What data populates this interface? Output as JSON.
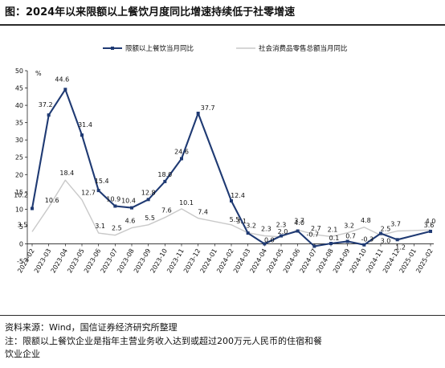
{
  "title": "图：2024年以来限额以上餐饮月度同比增速持续低于社零增速",
  "footer": {
    "source": "资料来源：Wind，国信证券经济研究所整理",
    "note_line1": "注：限额以上餐饮企业是指年主营业务收入达到或超过200万元人民币的住宿和餐",
    "note_line2": "饮业企业"
  },
  "chart_data": {
    "type": "line",
    "ylabel": "%",
    "ylim": [
      -5,
      50
    ],
    "yticks": [
      -5,
      0,
      5,
      10,
      15,
      20,
      25,
      30,
      35,
      40,
      45,
      50
    ],
    "grid": false,
    "legend": "top",
    "categories": [
      "2023-02",
      "2023-03",
      "2023-04",
      "2023-05",
      "2023-06",
      "2023-07",
      "2023-08",
      "2023-09",
      "2023-10",
      "2023-11",
      "2023-12",
      "2024-01",
      "2024-02",
      "2024-03",
      "2024-04",
      "2024-05",
      "2024-06",
      "2024-07",
      "2024-08",
      "2024-09",
      "2024-10",
      "2024-11",
      "2024-12",
      "2025-01",
      "2025-02"
    ],
    "x": [
      "2023-02",
      "2023-03",
      "2023-04",
      "2023-05",
      "2023-06",
      "2023-07",
      "2023-08",
      "2023-09",
      "2023-10",
      "2023-11",
      "2023-12",
      "2024-02",
      "2024-03",
      "2024-04",
      "2024-05",
      "2024-06",
      "2024-07",
      "2024-08",
      "2024-09",
      "2024-10",
      "2024-11",
      "2024-12",
      "2025-02"
    ],
    "series": [
      {
        "name": "限额以上餐饮当月同比",
        "color": "#1f3a73",
        "values": [
          10.2,
          37.2,
          44.6,
          31.4,
          15.4,
          10.9,
          10.4,
          12.8,
          18.0,
          24.6,
          37.7,
          12.4,
          3.1,
          0.0,
          2.3,
          3.7,
          -0.7,
          0.1,
          0.7,
          -0.3,
          3.0,
          1.2,
          3.6
        ],
        "labels": [
          "10.2",
          "37.2",
          "44.6",
          "31.4",
          "15.4",
          "10.9",
          "10.4",
          "12.8",
          "18.0",
          "24.6",
          "37.7",
          "12.4",
          "3.1",
          "0.0",
          "2.3",
          "3.7",
          "-0.7",
          "0.1",
          "0.7",
          "-0.3",
          "3.0",
          "1.2",
          "3.6"
        ]
      },
      {
        "name": "社会消费品零售总额当月同比",
        "color": "#c9c9c9",
        "values": [
          3.5,
          10.6,
          18.4,
          12.7,
          3.1,
          2.5,
          4.6,
          5.5,
          7.6,
          10.1,
          7.4,
          5.5,
          3.2,
          2.3,
          2.0,
          4.0,
          2.7,
          2.1,
          3.2,
          4.8,
          2.5,
          3.7,
          4.0
        ],
        "labels": [
          "3.5",
          "10.6",
          "18.4",
          "12.7",
          "3.1",
          "2.5",
          "4.6",
          "5.5",
          "7.6",
          "10.1",
          "7.4",
          "5.5",
          "3.2",
          "2.3",
          "2.0",
          "4.0",
          "2.7",
          "2.1",
          "3.2",
          "4.8",
          "2.5",
          "3.7",
          "4.0"
        ]
      }
    ]
  }
}
